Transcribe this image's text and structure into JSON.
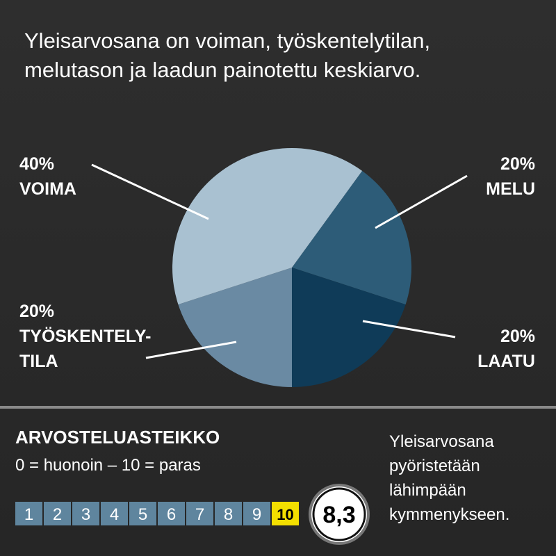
{
  "chart_data": {
    "type": "pie",
    "title": "Yleisarvosana on voiman, työskentelytilan,\nmelutason ja laadun painotettu keskiarvo.",
    "categories": [
      "MELU",
      "LAATU",
      "TYÖSKENTELY-\nTILA",
      "VOIMA"
    ],
    "values": [
      20,
      20,
      20,
      40
    ],
    "value_labels": [
      "20%",
      "20%",
      "20%",
      "40%"
    ],
    "colors": [
      "#2d5c78",
      "#0f3b58",
      "#6a8aa3",
      "#a9c1d1"
    ]
  },
  "scale": {
    "title": "ARVOSTELUASTEIKKO",
    "subtitle": "0 = huonoin – 10 = paras",
    "steps": [
      1,
      2,
      3,
      4,
      5,
      6,
      7,
      8,
      9,
      10
    ],
    "score": "8,3"
  },
  "note": "Yleisarvosana\npyöristetään\nlähimpään\nkymmenykseen."
}
